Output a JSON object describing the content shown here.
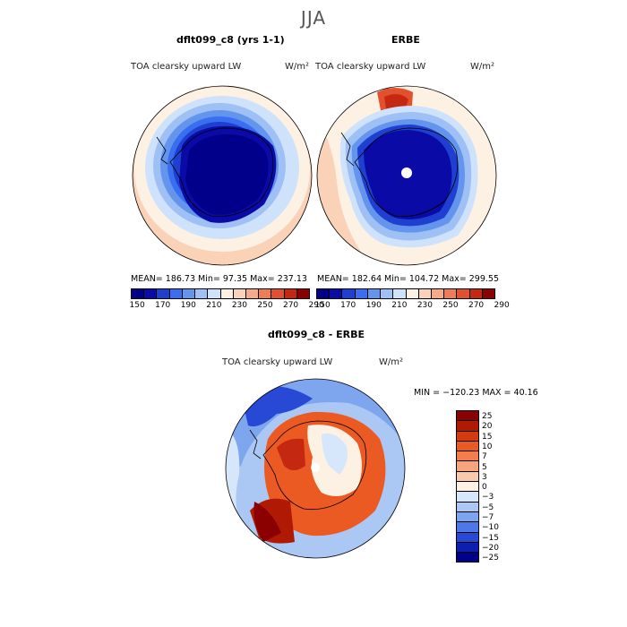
{
  "figure": {
    "title": "JJA"
  },
  "panels": {
    "model": {
      "title": "dflt099_c8 (yrs 1-1)",
      "var_label": "TOA clearsky upward LW",
      "units": "W/m²",
      "stats": "MEAN= 186.73  Min=  97.35  Max= 237.13"
    },
    "obs": {
      "title": "ERBE",
      "var_label": "TOA clearsky upward LW",
      "units": "W/m²",
      "stats": "MEAN= 182.64  Min= 104.72  Max= 299.55"
    },
    "diff": {
      "title": "dflt099_c8 - ERBE",
      "var_label": "TOA clearsky upward LW",
      "units": "W/m²",
      "stats": "MIN = −120.23 MAX =  40.16"
    }
  },
  "colorbar_abs": {
    "colors": [
      "#00008b",
      "#0a0aa6",
      "#1e3fd0",
      "#3a6ef0",
      "#6495ed",
      "#9fc0f5",
      "#cfe2fb",
      "#fdf1e4",
      "#f9d2b8",
      "#f5ab89",
      "#ee7d57",
      "#e2502e",
      "#c42810",
      "#8b0000"
    ],
    "tick_labels": [
      "150",
      "170",
      "190",
      "210",
      "230",
      "250",
      "270",
      "290"
    ]
  },
  "colorbar_diff": {
    "colors": [
      "#8b0000",
      "#b01a05",
      "#d23a12",
      "#ec5a23",
      "#f27e4c",
      "#f6a47c",
      "#f9c8ad",
      "#fdf1e4",
      "#d6e6fb",
      "#abc8f5",
      "#7ea6ee",
      "#4c78e8",
      "#2749d6",
      "#0d1faf",
      "#00008b"
    ],
    "tick_labels": [
      "25",
      "20",
      "15",
      "10",
      "7",
      "5",
      "3",
      "0",
      "−3",
      "−5",
      "−7",
      "−10",
      "−15",
      "−20",
      "−25"
    ]
  }
}
